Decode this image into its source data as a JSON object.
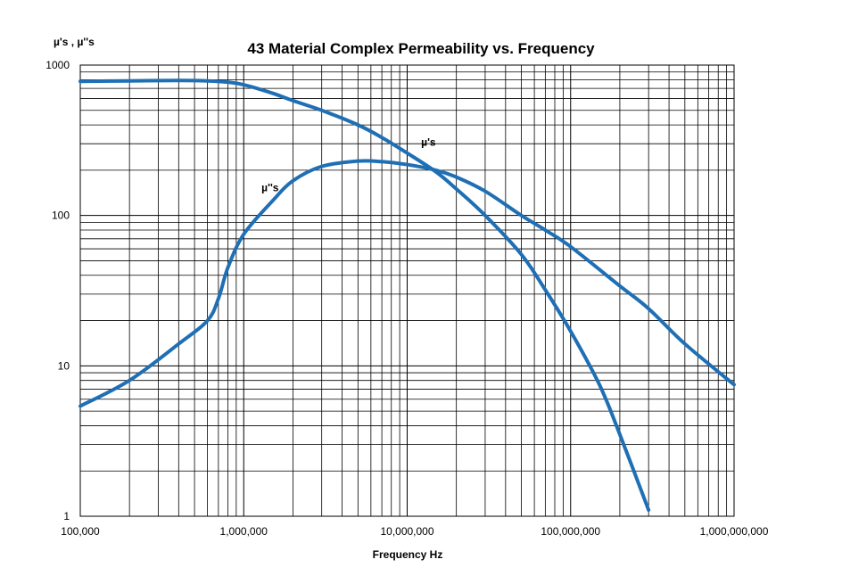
{
  "chart_data": {
    "type": "line",
    "title": "43 Material Complex Permeability vs. Frequency",
    "xlabel": "Frequency Hz",
    "ylabel": "µ's , µ''s",
    "x_scale": "log",
    "y_scale": "log",
    "xlim": [
      100000,
      1000000000
    ],
    "ylim": [
      1,
      1000
    ],
    "grid": true,
    "line_color": "#1f6fb5",
    "x_ticks": [
      {
        "value": 100000,
        "label": "100,000"
      },
      {
        "value": 1000000,
        "label": "1,000,000"
      },
      {
        "value": 10000000,
        "label": "10,000,000"
      },
      {
        "value": 100000000,
        "label": "100,000,000"
      },
      {
        "value": 1000000000,
        "label": "1,000,000,000"
      }
    ],
    "y_ticks": [
      {
        "value": 1,
        "label": "1"
      },
      {
        "value": 10,
        "label": "10"
      },
      {
        "value": 100,
        "label": "100"
      },
      {
        "value": 1000,
        "label": "1000"
      }
    ],
    "series": [
      {
        "name": "µ's",
        "label": "µ's",
        "label_at": {
          "x": 13500000,
          "y": 290
        },
        "x": [
          100000,
          200000,
          400000,
          600000,
          800000,
          1000000,
          1500000,
          2000000,
          3000000,
          5000000,
          7000000,
          10000000,
          15000000,
          20000000,
          30000000,
          50000000,
          70000000,
          100000000,
          150000000,
          200000000,
          300000000
        ],
        "y": [
          780,
          785,
          790,
          785,
          770,
          740,
          650,
          580,
          500,
          400,
          330,
          260,
          195,
          150,
          100,
          55,
          32,
          17,
          7.5,
          3.5,
          1.1
        ]
      },
      {
        "name": "µ''s",
        "label": "µ''s",
        "label_at": {
          "x": 1450000,
          "y": 145
        },
        "x": [
          100000,
          200000,
          400000,
          600000,
          700000,
          800000,
          1000000,
          1500000,
          2000000,
          3000000,
          5000000,
          7000000,
          10000000,
          15000000,
          20000000,
          30000000,
          50000000,
          70000000,
          100000000,
          200000000,
          300000000,
          500000000,
          1000000000
        ],
        "y": [
          5.4,
          8,
          14,
          20,
          28,
          45,
          75,
          125,
          170,
          212,
          230,
          228,
          218,
          200,
          180,
          145,
          100,
          80,
          62,
          34,
          24,
          14,
          7.5
        ]
      }
    ]
  }
}
